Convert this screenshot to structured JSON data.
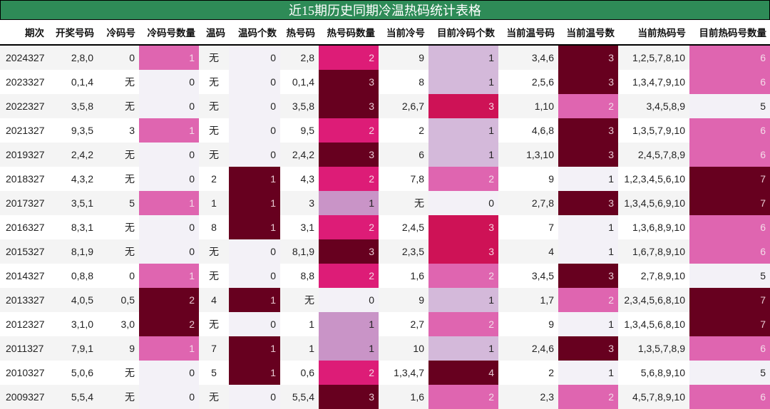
{
  "title": "近15期历史同期冷温热码统计表格",
  "colors": {
    "title_bg": "#2e8b57",
    "pink": "#df65b0",
    "hot_pink": "#dd1c77",
    "crimson": "#ce1256",
    "dark_maroon": "#67001f",
    "light_purple": "#d4b9da",
    "mauve": "#c994c7",
    "pale": "#f3f1f7"
  },
  "headers": [
    "期次",
    "开奖号码",
    "冷码号",
    "冷码号数量",
    "温码",
    "温码个数",
    "热号码",
    "热号码数量",
    "当前冷号",
    "目前冷码个数",
    "当前温号码",
    "当前温号数",
    "当前热码号",
    "目前热码号数量"
  ],
  "rows": [
    {
      "period": "2024327",
      "draw": "2,8,0",
      "cold": "0",
      "cold_count": "1",
      "warm": "无",
      "warm_count": "0",
      "hot": "2,8",
      "hot_count": "2",
      "cur_cold": "9",
      "cur_cold_count": "1",
      "cur_warm": "3,4,6",
      "cur_warm_count": "3",
      "cur_hot": "1,2,5,7,8,10",
      "cur_hot_count": "6"
    },
    {
      "period": "2023327",
      "draw": "0,1,4",
      "cold": "无",
      "cold_count": "0",
      "warm": "无",
      "warm_count": "0",
      "hot": "0,1,4",
      "hot_count": "3",
      "cur_cold": "8",
      "cur_cold_count": "1",
      "cur_warm": "2,5,6",
      "cur_warm_count": "3",
      "cur_hot": "1,3,4,7,9,10",
      "cur_hot_count": "6"
    },
    {
      "period": "2022327",
      "draw": "3,5,8",
      "cold": "无",
      "cold_count": "0",
      "warm": "无",
      "warm_count": "0",
      "hot": "3,5,8",
      "hot_count": "3",
      "cur_cold": "2,6,7",
      "cur_cold_count": "3",
      "cur_warm": "1,10",
      "cur_warm_count": "2",
      "cur_hot": "3,4,5,8,9",
      "cur_hot_count": "5"
    },
    {
      "period": "2021327",
      "draw": "9,3,5",
      "cold": "3",
      "cold_count": "1",
      "warm": "无",
      "warm_count": "0",
      "hot": "9,5",
      "hot_count": "2",
      "cur_cold": "2",
      "cur_cold_count": "1",
      "cur_warm": "4,6,8",
      "cur_warm_count": "3",
      "cur_hot": "1,3,5,7,9,10",
      "cur_hot_count": "6"
    },
    {
      "period": "2019327",
      "draw": "2,4,2",
      "cold": "无",
      "cold_count": "0",
      "warm": "无",
      "warm_count": "0",
      "hot": "2,4,2",
      "hot_count": "3",
      "cur_cold": "6",
      "cur_cold_count": "1",
      "cur_warm": "1,3,10",
      "cur_warm_count": "3",
      "cur_hot": "2,4,5,7,8,9",
      "cur_hot_count": "6"
    },
    {
      "period": "2018327",
      "draw": "4,3,2",
      "cold": "无",
      "cold_count": "0",
      "warm": "2",
      "warm_count": "1",
      "hot": "4,3",
      "hot_count": "2",
      "cur_cold": "7,8",
      "cur_cold_count": "2",
      "cur_warm": "9",
      "cur_warm_count": "1",
      "cur_hot": "1,2,3,4,5,6,10",
      "cur_hot_count": "7"
    },
    {
      "period": "2017327",
      "draw": "3,5,1",
      "cold": "5",
      "cold_count": "1",
      "warm": "1",
      "warm_count": "1",
      "hot": "3",
      "hot_count": "1",
      "cur_cold": "无",
      "cur_cold_count": "0",
      "cur_warm": "2,7,8",
      "cur_warm_count": "3",
      "cur_hot": "1,3,4,5,6,9,10",
      "cur_hot_count": "7"
    },
    {
      "period": "2016327",
      "draw": "8,3,1",
      "cold": "无",
      "cold_count": "0",
      "warm": "8",
      "warm_count": "1",
      "hot": "3,1",
      "hot_count": "2",
      "cur_cold": "2,4,5",
      "cur_cold_count": "3",
      "cur_warm": "7",
      "cur_warm_count": "1",
      "cur_hot": "1,3,6,8,9,10",
      "cur_hot_count": "6"
    },
    {
      "period": "2015327",
      "draw": "8,1,9",
      "cold": "无",
      "cold_count": "0",
      "warm": "无",
      "warm_count": "0",
      "hot": "8,1,9",
      "hot_count": "3",
      "cur_cold": "2,3,5",
      "cur_cold_count": "3",
      "cur_warm": "4",
      "cur_warm_count": "1",
      "cur_hot": "1,6,7,8,9,10",
      "cur_hot_count": "6"
    },
    {
      "period": "2014327",
      "draw": "0,8,8",
      "cold": "0",
      "cold_count": "1",
      "warm": "无",
      "warm_count": "0",
      "hot": "8,8",
      "hot_count": "2",
      "cur_cold": "1,6",
      "cur_cold_count": "2",
      "cur_warm": "3,4,5",
      "cur_warm_count": "3",
      "cur_hot": "2,7,8,9,10",
      "cur_hot_count": "5"
    },
    {
      "period": "2013327",
      "draw": "4,0,5",
      "cold": "0,5",
      "cold_count": "2",
      "warm": "4",
      "warm_count": "1",
      "hot": "无",
      "hot_count": "0",
      "cur_cold": "9",
      "cur_cold_count": "1",
      "cur_warm": "1,7",
      "cur_warm_count": "2",
      "cur_hot": "2,3,4,5,6,8,10",
      "cur_hot_count": "7"
    },
    {
      "period": "2012327",
      "draw": "3,1,0",
      "cold": "3,0",
      "cold_count": "2",
      "warm": "无",
      "warm_count": "0",
      "hot": "1",
      "hot_count": "1",
      "cur_cold": "2,7",
      "cur_cold_count": "2",
      "cur_warm": "9",
      "cur_warm_count": "1",
      "cur_hot": "1,3,4,5,6,8,10",
      "cur_hot_count": "7"
    },
    {
      "period": "2011327",
      "draw": "7,9,1",
      "cold": "9",
      "cold_count": "1",
      "warm": "7",
      "warm_count": "1",
      "hot": "1",
      "hot_count": "1",
      "cur_cold": "10",
      "cur_cold_count": "1",
      "cur_warm": "2,4,6",
      "cur_warm_count": "3",
      "cur_hot": "1,3,5,7,8,9",
      "cur_hot_count": "6"
    },
    {
      "period": "2010327",
      "draw": "5,0,6",
      "cold": "无",
      "cold_count": "0",
      "warm": "5",
      "warm_count": "1",
      "hot": "0,6",
      "hot_count": "2",
      "cur_cold": "1,3,4,7",
      "cur_cold_count": "4",
      "cur_warm": "2",
      "cur_warm_count": "1",
      "cur_hot": "5,6,8,9,10",
      "cur_hot_count": "5"
    },
    {
      "period": "2009327",
      "draw": "5,5,4",
      "cold": "无",
      "cold_count": "0",
      "warm": "无",
      "warm_count": "0",
      "hot": "5,5,4",
      "hot_count": "3",
      "cur_cold": "1,6",
      "cur_cold_count": "2",
      "cur_warm": "2,3",
      "cur_warm_count": "2",
      "cur_hot": "4,5,7,8,9,10",
      "cur_hot_count": "6"
    }
  ]
}
